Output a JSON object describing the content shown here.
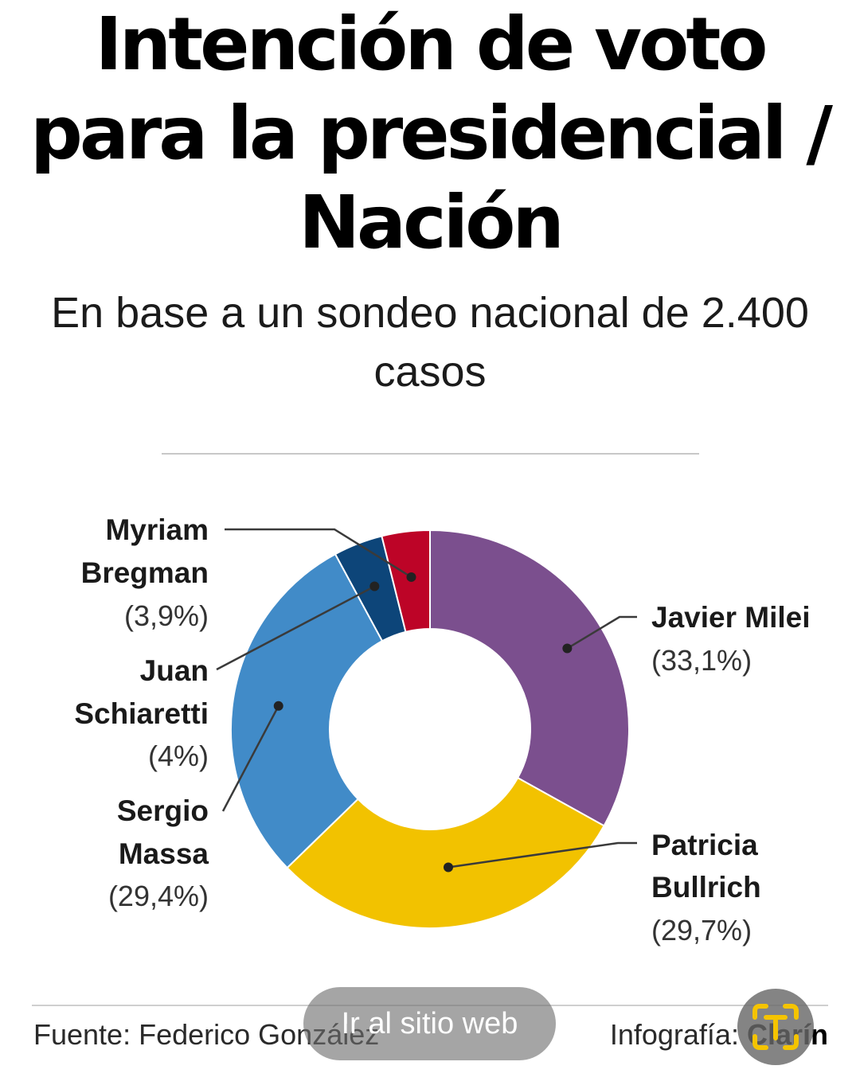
{
  "header": {
    "title": "Intención de voto para la presidencial / Nación",
    "subtitle": "En base a un sondeo nacional de 2.400 casos"
  },
  "chart_data": {
    "type": "pie",
    "variant": "donut",
    "title": "Intención de voto para la presidencial / Nación",
    "subtitle": "En base a un sondeo nacional de 2.400 casos",
    "slices": [
      {
        "name": "Javier Milei",
        "value": 33.1,
        "label": "(33,1%)",
        "color": "#7b4f8e"
      },
      {
        "name": "Patricia Bullrich",
        "value": 29.7,
        "label": "(29,7%)",
        "color": "#f2c200"
      },
      {
        "name": "Sergio Massa",
        "value": 29.4,
        "label": "(29,4%)",
        "color": "#418bc8"
      },
      {
        "name": "Juan Schiaretti",
        "value": 4,
        "label": "(4%)",
        "color": "#0d4579"
      },
      {
        "name": "Myriam Bregman",
        "value": 3.9,
        "label": "(3,9%)",
        "color": "#bd0427"
      }
    ]
  },
  "labels": {
    "milei": {
      "line1": "Javier Milei",
      "pct": "(33,1%)"
    },
    "bullrich": {
      "line1": "Patricia",
      "line2": "Bullrich",
      "pct": "(29,7%)"
    },
    "massa": {
      "line1": "Sergio",
      "line2": "Massa",
      "pct": "(29,4%)"
    },
    "schiaretti": {
      "line1": "Juan",
      "line2": "Schiaretti",
      "pct": "(4%)"
    },
    "bregman": {
      "line1": "Myriam",
      "line2": "Bregman",
      "pct": "(3,9%)"
    }
  },
  "footer": {
    "source": "Fuente: Federico González",
    "credit_label": "Infografía:",
    "credit_brand": "Clarín"
  },
  "overlay": {
    "site_button": "Ir al sitio web",
    "scan_icon": "text-scan-icon"
  },
  "colors": {
    "leader_line": "#3a3a3a",
    "overlay_button": "#6e6e6e",
    "scan_accent": "#f5c400"
  }
}
